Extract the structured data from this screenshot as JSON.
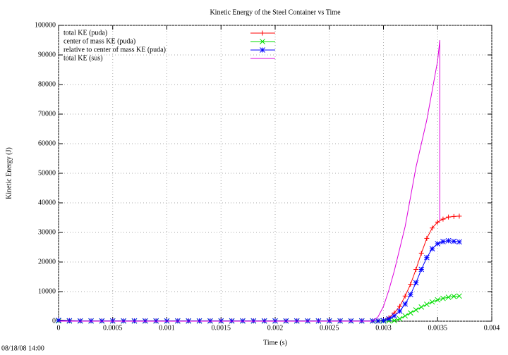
{
  "chart_data": {
    "type": "line",
    "title": "Kinetic Energy of the Steel Container vs Time",
    "x_label": "Time (s)",
    "y_label": "Kinetic Energy (J)",
    "timestamp": "08/18/08 14:00",
    "xlim": [
      0,
      0.004
    ],
    "xticks": [
      0,
      0.0005,
      0.001,
      0.0015,
      0.002,
      0.0025,
      0.003,
      0.0035,
      0.004
    ],
    "ylim": [
      0,
      100000
    ],
    "yticks": [
      0,
      10000,
      20000,
      30000,
      40000,
      50000,
      60000,
      70000,
      80000,
      90000,
      100000
    ],
    "grid": true,
    "legend": "top-left",
    "x": [
      0,
      0.0001,
      0.0002,
      0.0003,
      0.0004,
      0.0005,
      0.0006,
      0.0007,
      0.0008,
      0.0009,
      0.001,
      0.0011,
      0.0012,
      0.0013,
      0.0014,
      0.0015,
      0.0016,
      0.0017,
      0.0018,
      0.0019,
      0.002,
      0.0021,
      0.0022,
      0.0023,
      0.0024,
      0.0025,
      0.0026,
      0.0027,
      0.0028,
      0.0029,
      0.00295,
      0.003,
      0.00305,
      0.0031,
      0.00315,
      0.0032,
      0.00325,
      0.0033,
      0.00335,
      0.0034,
      0.00345,
      0.0035,
      0.00355,
      0.0036,
      0.00365,
      0.0037
    ],
    "series": [
      {
        "name": "total KE (puda)",
        "color": "#ff0000",
        "marker": "+",
        "values": [
          400,
          200,
          100,
          100,
          100,
          100,
          100,
          100,
          100,
          100,
          100,
          100,
          100,
          100,
          100,
          100,
          100,
          100,
          100,
          100,
          100,
          100,
          100,
          100,
          100,
          100,
          100,
          100,
          100,
          100,
          100,
          300,
          1200,
          2800,
          5000,
          8500,
          12500,
          17500,
          23000,
          28000,
          31500,
          33500,
          34500,
          35200,
          35400,
          35500
        ]
      },
      {
        "name": "center of mass KE (puda)",
        "color": "#00dd00",
        "marker": "x",
        "values": [
          100,
          50,
          50,
          50,
          50,
          50,
          50,
          50,
          50,
          50,
          50,
          50,
          50,
          50,
          50,
          50,
          50,
          50,
          50,
          50,
          50,
          50,
          50,
          50,
          50,
          50,
          50,
          50,
          50,
          50,
          50,
          50,
          100,
          200,
          800,
          1800,
          2800,
          3800,
          4800,
          5700,
          6500,
          7200,
          7700,
          8100,
          8400,
          8500
        ]
      },
      {
        "name": "relative to center of mass KE (puda)",
        "color": "#0000ff",
        "marker": "*",
        "values": [
          300,
          150,
          100,
          100,
          100,
          100,
          100,
          100,
          100,
          100,
          100,
          100,
          100,
          100,
          100,
          100,
          100,
          100,
          100,
          100,
          100,
          100,
          100,
          100,
          100,
          100,
          100,
          100,
          100,
          100,
          100,
          200,
          800,
          1800,
          3400,
          5800,
          9000,
          13000,
          17500,
          21500,
          24500,
          26200,
          26900,
          27200,
          27000,
          26800
        ]
      },
      {
        "name": "total KE (sus)",
        "color": "#dd00dd",
        "marker": "none",
        "x": [
          0,
          0.0029,
          0.00295,
          0.003,
          0.00305,
          0.0031,
          0.0032,
          0.0033,
          0.0034,
          0.0035,
          0.00352,
          0.00352
        ],
        "values": [
          0,
          0,
          1500,
          5000,
          10500,
          17000,
          32000,
          52000,
          68000,
          88000,
          95000,
          34000
        ]
      }
    ]
  }
}
